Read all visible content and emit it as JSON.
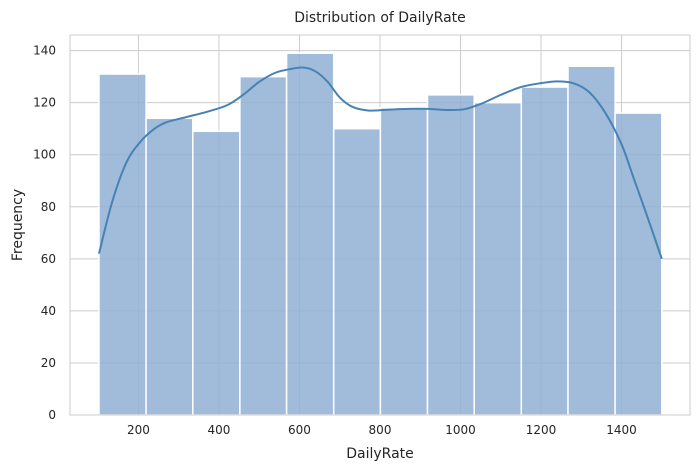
{
  "chart_data": {
    "type": "histogram",
    "title": "Distribution of DailyRate",
    "xlabel": "DailyRate",
    "ylabel": "Frequency",
    "xlim": [
      30,
      1570
    ],
    "ylim": [
      0,
      146
    ],
    "xticks": [
      200,
      400,
      600,
      800,
      1000,
      1200,
      1400
    ],
    "yticks": [
      0,
      20,
      40,
      60,
      80,
      100,
      120,
      140
    ],
    "grid": true,
    "kde": true,
    "bins": [
      {
        "x0": 102,
        "x1": 219,
        "count": 131
      },
      {
        "x0": 219,
        "x1": 335,
        "count": 114
      },
      {
        "x0": 335,
        "x1": 452,
        "count": 109
      },
      {
        "x0": 452,
        "x1": 568,
        "count": 130
      },
      {
        "x0": 568,
        "x1": 685,
        "count": 139
      },
      {
        "x0": 685,
        "x1": 801,
        "count": 110
      },
      {
        "x0": 801,
        "x1": 918,
        "count": 118
      },
      {
        "x0": 918,
        "x1": 1034,
        "count": 123
      },
      {
        "x0": 1034,
        "x1": 1151,
        "count": 120
      },
      {
        "x0": 1151,
        "x1": 1267,
        "count": 126
      },
      {
        "x0": 1267,
        "x1": 1384,
        "count": 134
      },
      {
        "x0": 1384,
        "x1": 1500,
        "count": 116
      }
    ],
    "kde_curve": [
      [
        102,
        62
      ],
      [
        135,
        82
      ],
      [
        170,
        97
      ],
      [
        205,
        105
      ],
      [
        240,
        110
      ],
      [
        270,
        112.5
      ],
      [
        320,
        114.5
      ],
      [
        370,
        116.5
      ],
      [
        420,
        119
      ],
      [
        460,
        123
      ],
      [
        500,
        128
      ],
      [
        540,
        131.5
      ],
      [
        580,
        133
      ],
      [
        610,
        133.5
      ],
      [
        640,
        132
      ],
      [
        670,
        128
      ],
      [
        700,
        122
      ],
      [
        730,
        118.5
      ],
      [
        770,
        117
      ],
      [
        820,
        117.3
      ],
      [
        870,
        117.6
      ],
      [
        920,
        117.6
      ],
      [
        970,
        117.2
      ],
      [
        1010,
        117.5
      ],
      [
        1050,
        119.5
      ],
      [
        1100,
        123
      ],
      [
        1150,
        126
      ],
      [
        1200,
        127.5
      ],
      [
        1240,
        128.2
      ],
      [
        1280,
        127.5
      ],
      [
        1320,
        124
      ],
      [
        1360,
        116
      ],
      [
        1400,
        104
      ],
      [
        1430,
        91
      ],
      [
        1460,
        78
      ],
      [
        1500,
        60
      ]
    ],
    "bar_color": "#8fb0d3",
    "bar_edge_color": "#ffffff",
    "line_color": "#4682b4",
    "grid_color": "#cccccc",
    "spine_color": "#cccccc"
  }
}
